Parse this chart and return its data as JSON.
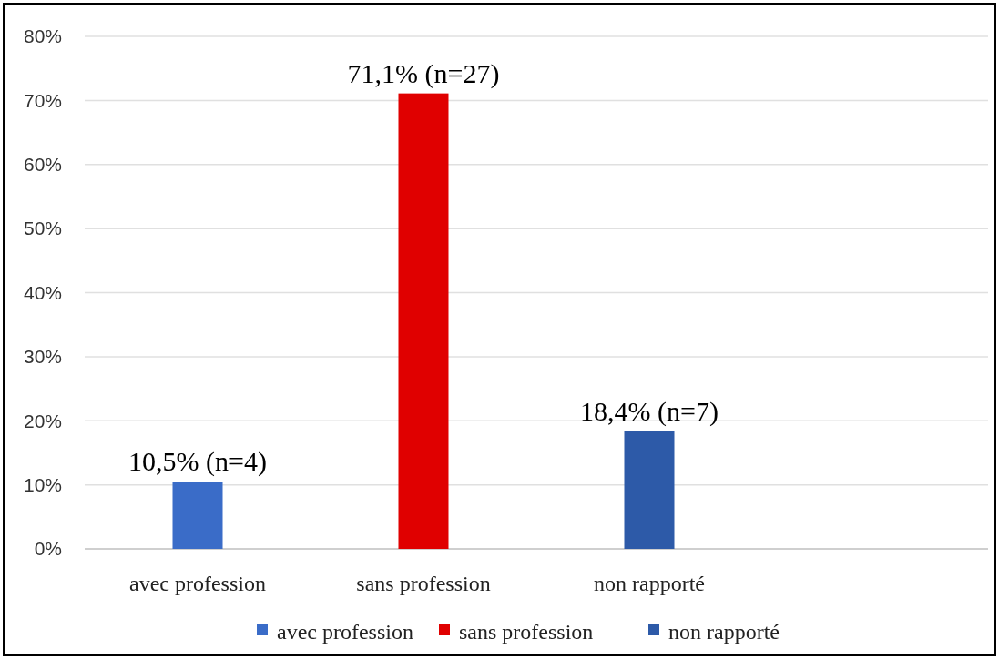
{
  "chart_data": {
    "type": "bar",
    "categories": [
      "avec profession",
      "sans profession",
      "non rapporté",
      null
    ],
    "series": [
      {
        "name": "avec profession",
        "color": "#3a6cc8",
        "values": [
          10.5,
          null,
          null,
          null
        ],
        "value_labels": [
          "10,5% (n=4)",
          null,
          null,
          null
        ]
      },
      {
        "name": "sans profession",
        "color": "#e00000",
        "values": [
          null,
          71.1,
          null,
          null
        ],
        "value_labels": [
          null,
          "71,1% (n=27)",
          null,
          null
        ]
      },
      {
        "name": "non rapporté",
        "color": "#2d5aa8",
        "values": [
          null,
          null,
          18.4,
          null
        ],
        "value_labels": [
          null,
          null,
          "18,4% (n=7)",
          null
        ]
      }
    ],
    "ylim": [
      0,
      80
    ],
    "yticks": [
      {
        "value": 0,
        "label": "0%"
      },
      {
        "value": 10,
        "label": "10%"
      },
      {
        "value": 20,
        "label": "20%"
      },
      {
        "value": 30,
        "label": "30%"
      },
      {
        "value": 40,
        "label": "40%"
      },
      {
        "value": 50,
        "label": "50%"
      },
      {
        "value": 60,
        "label": "60%"
      },
      {
        "value": 70,
        "label": "70%"
      },
      {
        "value": 80,
        "label": "80%"
      }
    ],
    "grid": "y",
    "legend": "bottom"
  }
}
